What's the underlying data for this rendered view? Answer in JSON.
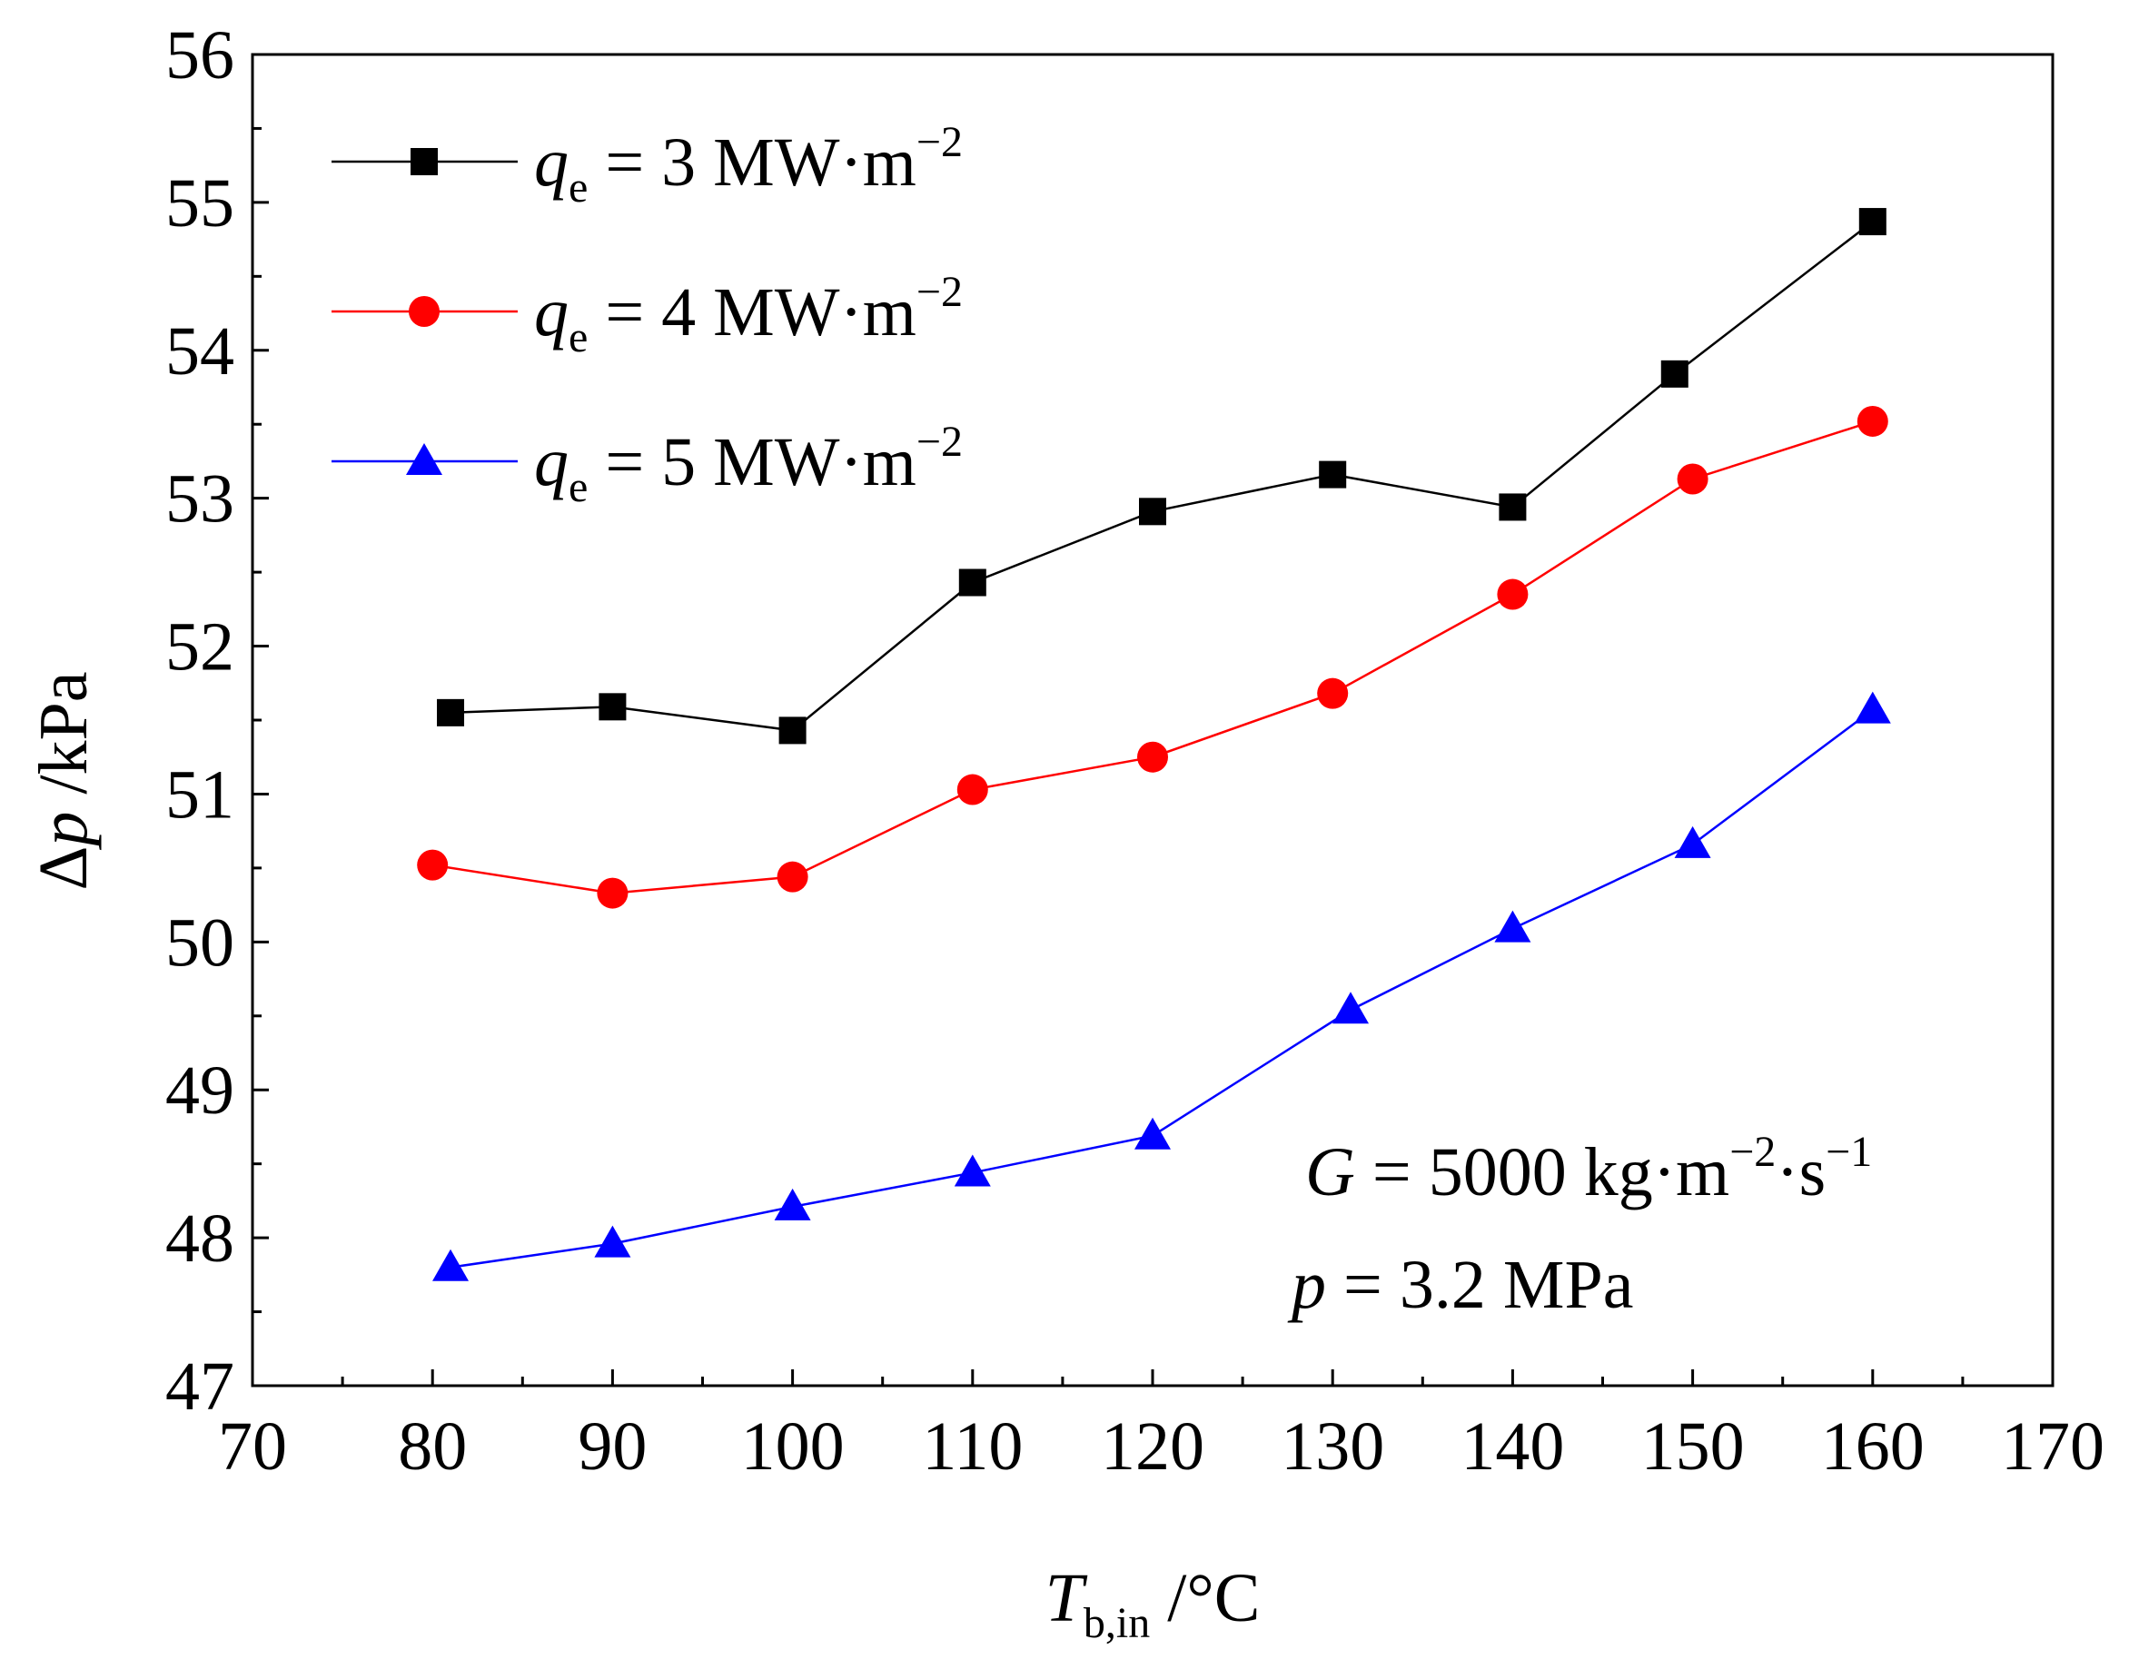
{
  "chart_data": {
    "type": "line",
    "xlabel": {
      "main": "T",
      "sub": "b,in",
      "unit": " /°C"
    },
    "ylabel": {
      "delta": "Δ",
      "main": "p",
      "unit": " /kPa"
    },
    "xlim": [
      70,
      170
    ],
    "ylim": [
      47,
      56
    ],
    "xticks": [
      "70",
      "80",
      "90",
      "100",
      "110",
      "120",
      "130",
      "140",
      "150",
      "160",
      "170"
    ],
    "yticks": [
      "47",
      "48",
      "49",
      "50",
      "51",
      "52",
      "53",
      "54",
      "55",
      "56"
    ],
    "grid": false,
    "legend_position": "top-left",
    "series": [
      {
        "name": "q_e = 3 MW·m^−2",
        "legend": {
          "q": "q",
          "sub": "e",
          "text": " = 3 MW·m",
          "sup": "−2"
        },
        "color": "#000000",
        "marker": "square",
        "x": [
          81,
          90,
          100,
          110,
          120,
          130,
          140,
          149,
          160
        ],
        "y": [
          51.55,
          51.59,
          51.43,
          52.43,
          52.91,
          53.16,
          52.94,
          53.84,
          54.87
        ]
      },
      {
        "name": "q_e = 4 MW·m^−2",
        "legend": {
          "q": "q",
          "sub": "e",
          "text": " = 4 MW·m",
          "sup": "−2"
        },
        "color": "#ff0000",
        "marker": "circle",
        "x": [
          80,
          90,
          100,
          110,
          120,
          130,
          140,
          150,
          160
        ],
        "y": [
          50.52,
          50.33,
          50.44,
          51.03,
          51.25,
          51.68,
          52.35,
          53.13,
          53.52
        ]
      },
      {
        "name": "q_e = 5 MW·m^−2",
        "legend": {
          "q": "q",
          "sub": "e",
          "text": " = 5 MW·m",
          "sup": "−2"
        },
        "color": "#0000ff",
        "marker": "triangle",
        "x": [
          81,
          90,
          100,
          110,
          120,
          131,
          140,
          150,
          160
        ],
        "y": [
          47.8,
          47.96,
          48.21,
          48.44,
          48.69,
          49.54,
          50.09,
          50.66,
          51.57
        ]
      }
    ],
    "annotations": [
      {
        "italic": "G",
        "text": " = 5000 kg·m",
        "sup1": "−2",
        "text2": "·s",
        "sup2": "−1"
      },
      {
        "italic": "p",
        "text": " = 3.2 MPa"
      }
    ]
  }
}
